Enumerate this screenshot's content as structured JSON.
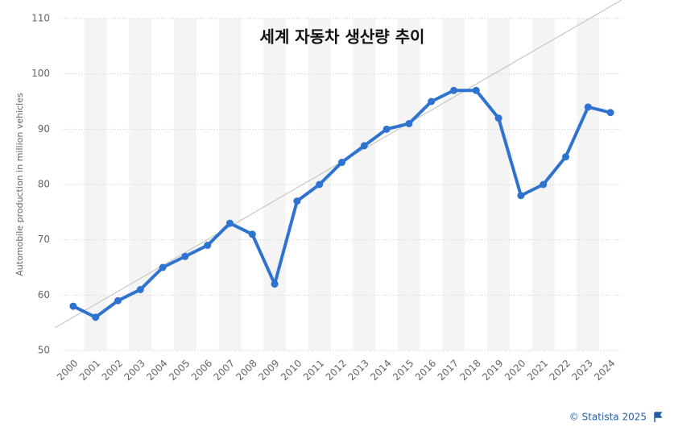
{
  "chart_data": {
    "type": "line",
    "title": "세계 자동차 생산량 추이",
    "y_label": "Automobile production in million vehicles",
    "source": "© Statista 2025",
    "categories": [
      "2000",
      "2001",
      "2002",
      "2003",
      "2004",
      "2005",
      "2006",
      "2007",
      "2008",
      "2009",
      "2010",
      "2011",
      "2012",
      "2013",
      "2014",
      "2015",
      "2016",
      "2017",
      "2018",
      "2019",
      "2020",
      "2021",
      "2022",
      "2023",
      "2024"
    ],
    "series": [
      {
        "name": "Automobile production",
        "color": "#2f73d0",
        "values": [
          58,
          56,
          59,
          61,
          65,
          67,
          69,
          73,
          71,
          62,
          77,
          80,
          84,
          87,
          90,
          91,
          95,
          97,
          97,
          92,
          78,
          80,
          85,
          94,
          93
        ]
      }
    ],
    "ylim": [
      50,
      110
    ],
    "yticks": [
      50,
      60,
      70,
      80,
      90,
      100,
      110
    ],
    "grid": true
  }
}
